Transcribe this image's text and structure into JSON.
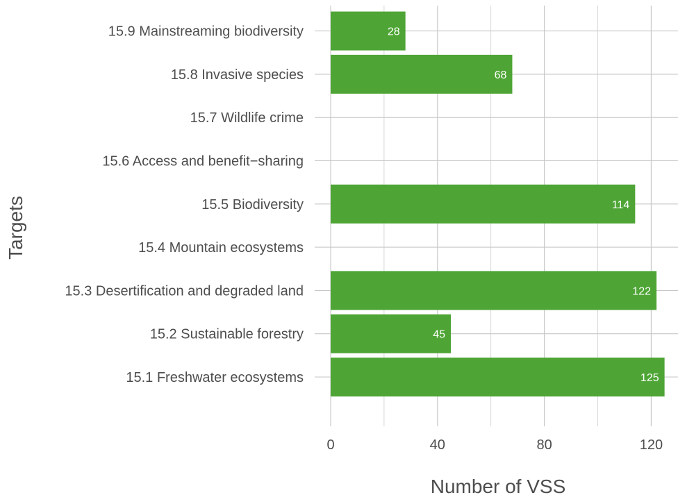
{
  "chart_data": {
    "type": "bar",
    "orientation": "horizontal",
    "title": "",
    "xlabel": "Number of VSS",
    "ylabel": "Targets",
    "categories": [
      "15.1 Freshwater ecosystems",
      "15.2 Sustainable forestry",
      "15.3 Desertification and degraded land",
      "15.4 Mountain ecosystems",
      "15.5 Biodiversity",
      "15.6 Access and benefit−sharing",
      "15.7 Wildlife crime",
      "15.8 Invasive species",
      "15.9 Mainstreaming biodiversity"
    ],
    "values": [
      125,
      45,
      122,
      null,
      114,
      null,
      null,
      68,
      28
    ],
    "data_labels": [
      "125",
      "45",
      "122",
      "",
      "114",
      "",
      "",
      "68",
      "28"
    ],
    "xlim": [
      0,
      130
    ],
    "xticks": [
      0,
      40,
      80,
      120
    ],
    "xtick_labels": [
      "0",
      "40",
      "80",
      "120"
    ],
    "grid": true,
    "legend": "none",
    "colors": {
      "bar": "#4ea535",
      "grid": "#c6c6c6",
      "text": "#4d4d4d",
      "data_label": "#ffffff"
    }
  }
}
